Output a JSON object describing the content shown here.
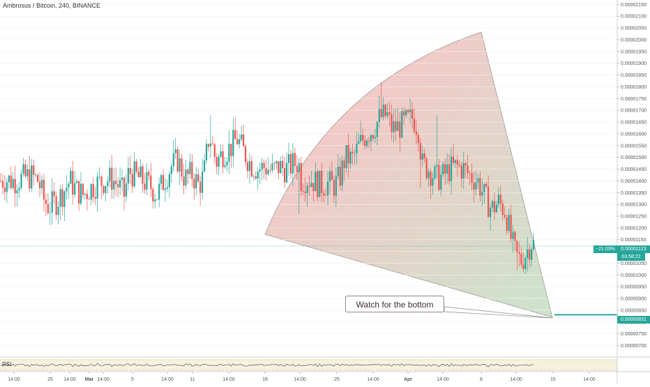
{
  "chart_data": {
    "type": "candlestick",
    "title": "Ambrosus / Bitcoin, 240, BINANCE",
    "y_ticks": [
      "0.00000700",
      "0.00000750",
      "0.00000800",
      "0.00000850",
      "0.00000900",
      "0.00000950",
      "0.00001000",
      "0.00001050",
      "0.00001100",
      "0.00001150",
      "0.00001200",
      "0.00001250",
      "0.00001300",
      "0.00001350",
      "0.00001400",
      "0.00001450",
      "0.00001500",
      "0.00001550",
      "0.00001600",
      "0.00001650",
      "0.00001700",
      "0.00001750",
      "0.00001800",
      "0.00001850",
      "0.00001900",
      "0.00001950",
      "0.00002000",
      "0.00002050",
      "0.00002100",
      "0.00002150"
    ],
    "ylim": [
      6.75e-06,
      2.16e-05
    ],
    "x_ticks": [
      "14:00",
      "25",
      "14:00",
      "Mar",
      "14:00",
      "5",
      "14:00",
      "11",
      "14:00",
      "18",
      "14:00",
      "25",
      "14:00",
      "Apr",
      "14:00",
      "8",
      "14:00",
      "15",
      "14:00"
    ],
    "bold_x_ticks": [
      "Mar",
      "Apr"
    ],
    "current_price": "0.00001123",
    "current_change": "−21.03%",
    "countdown": "03:58:22",
    "target_price": "0.00000831",
    "annotation": "Watch for the bottom",
    "indicator_label": "RSI",
    "price_path": [
      [
        0,
        1.4e-05
      ],
      [
        10,
        1.405e-05
      ],
      [
        20,
        1.4e-05
      ],
      [
        30,
        1.41e-05
      ],
      [
        45,
        1.42e-05
      ],
      [
        55,
        1.4e-05
      ],
      [
        63,
        1.32e-05
      ],
      [
        70,
        1.29e-05
      ],
      [
        80,
        1.31e-05
      ],
      [
        90,
        1.35e-05
      ],
      [
        100,
        1.4e-05
      ],
      [
        110,
        1.36e-05
      ],
      [
        120,
        1.34e-05
      ],
      [
        130,
        1.37e-05
      ],
      [
        140,
        1.39e-05
      ],
      [
        150,
        1.4e-05
      ],
      [
        160,
        1.41e-05
      ],
      [
        170,
        1.38e-05
      ],
      [
        178,
        1.34e-05
      ],
      [
        185,
        1.44e-05
      ],
      [
        195,
        1.42e-05
      ],
      [
        205,
        1.4e-05
      ],
      [
        215,
        1.38e-05
      ],
      [
        225,
        1.34e-05
      ],
      [
        235,
        1.4e-05
      ],
      [
        245,
        1.46e-05
      ],
      [
        255,
        1.49e-05
      ],
      [
        265,
        1.41e-05
      ],
      [
        275,
        1.43e-05
      ],
      [
        285,
        1.38e-05
      ],
      [
        292,
        1.42e-05
      ],
      [
        300,
        1.6e-05
      ],
      [
        310,
        1.48e-05
      ],
      [
        320,
        1.52e-05
      ],
      [
        330,
        1.54e-05
      ],
      [
        340,
        1.58e-05
      ],
      [
        350,
        1.52e-05
      ],
      [
        360,
        1.47e-05
      ],
      [
        370,
        1.45e-05
      ],
      [
        380,
        1.46e-05
      ],
      [
        390,
        1.44e-05
      ],
      [
        400,
        1.46e-05
      ],
      [
        410,
        1.45e-05
      ],
      [
        420,
        1.47e-05
      ],
      [
        428,
        1.48e-05
      ],
      [
        432,
        1.4e-05
      ],
      [
        440,
        1.41e-05
      ],
      [
        450,
        1.4e-05
      ],
      [
        460,
        1.38e-05
      ],
      [
        470,
        1.39e-05
      ],
      [
        480,
        1.38e-05
      ],
      [
        488,
        1.42e-05
      ],
      [
        495,
        1.5e-05
      ],
      [
        505,
        1.49e-05
      ],
      [
        515,
        1.55e-05
      ],
      [
        525,
        1.6e-05
      ],
      [
        535,
        1.62e-05
      ],
      [
        545,
        1.67e-05
      ],
      [
        555,
        1.68e-05
      ],
      [
        562,
        1.62e-05
      ],
      [
        572,
        1.63e-05
      ],
      [
        582,
        1.65e-05
      ],
      [
        592,
        1.67e-05
      ],
      [
        600,
        1.62e-05
      ],
      [
        605,
        1.47e-05
      ],
      [
        615,
        1.45e-05
      ],
      [
        625,
        1.41e-05
      ],
      [
        635,
        1.42e-05
      ],
      [
        645,
        1.45e-05
      ],
      [
        655,
        1.46e-05
      ],
      [
        665,
        1.45e-05
      ],
      [
        675,
        1.42e-05
      ],
      [
        685,
        1.4e-05
      ],
      [
        695,
        1.33e-05
      ],
      [
        705,
        1.28e-05
      ],
      [
        715,
        1.31e-05
      ],
      [
        725,
        1.27e-05
      ],
      [
        733,
        1.15e-05
      ],
      [
        740,
        1.08e-05
      ],
      [
        748,
        1.06e-05
      ],
      [
        755,
        1.1e-05
      ],
      [
        762,
        1.14e-05
      ],
      [
        767,
        1.123e-05
      ]
    ]
  }
}
